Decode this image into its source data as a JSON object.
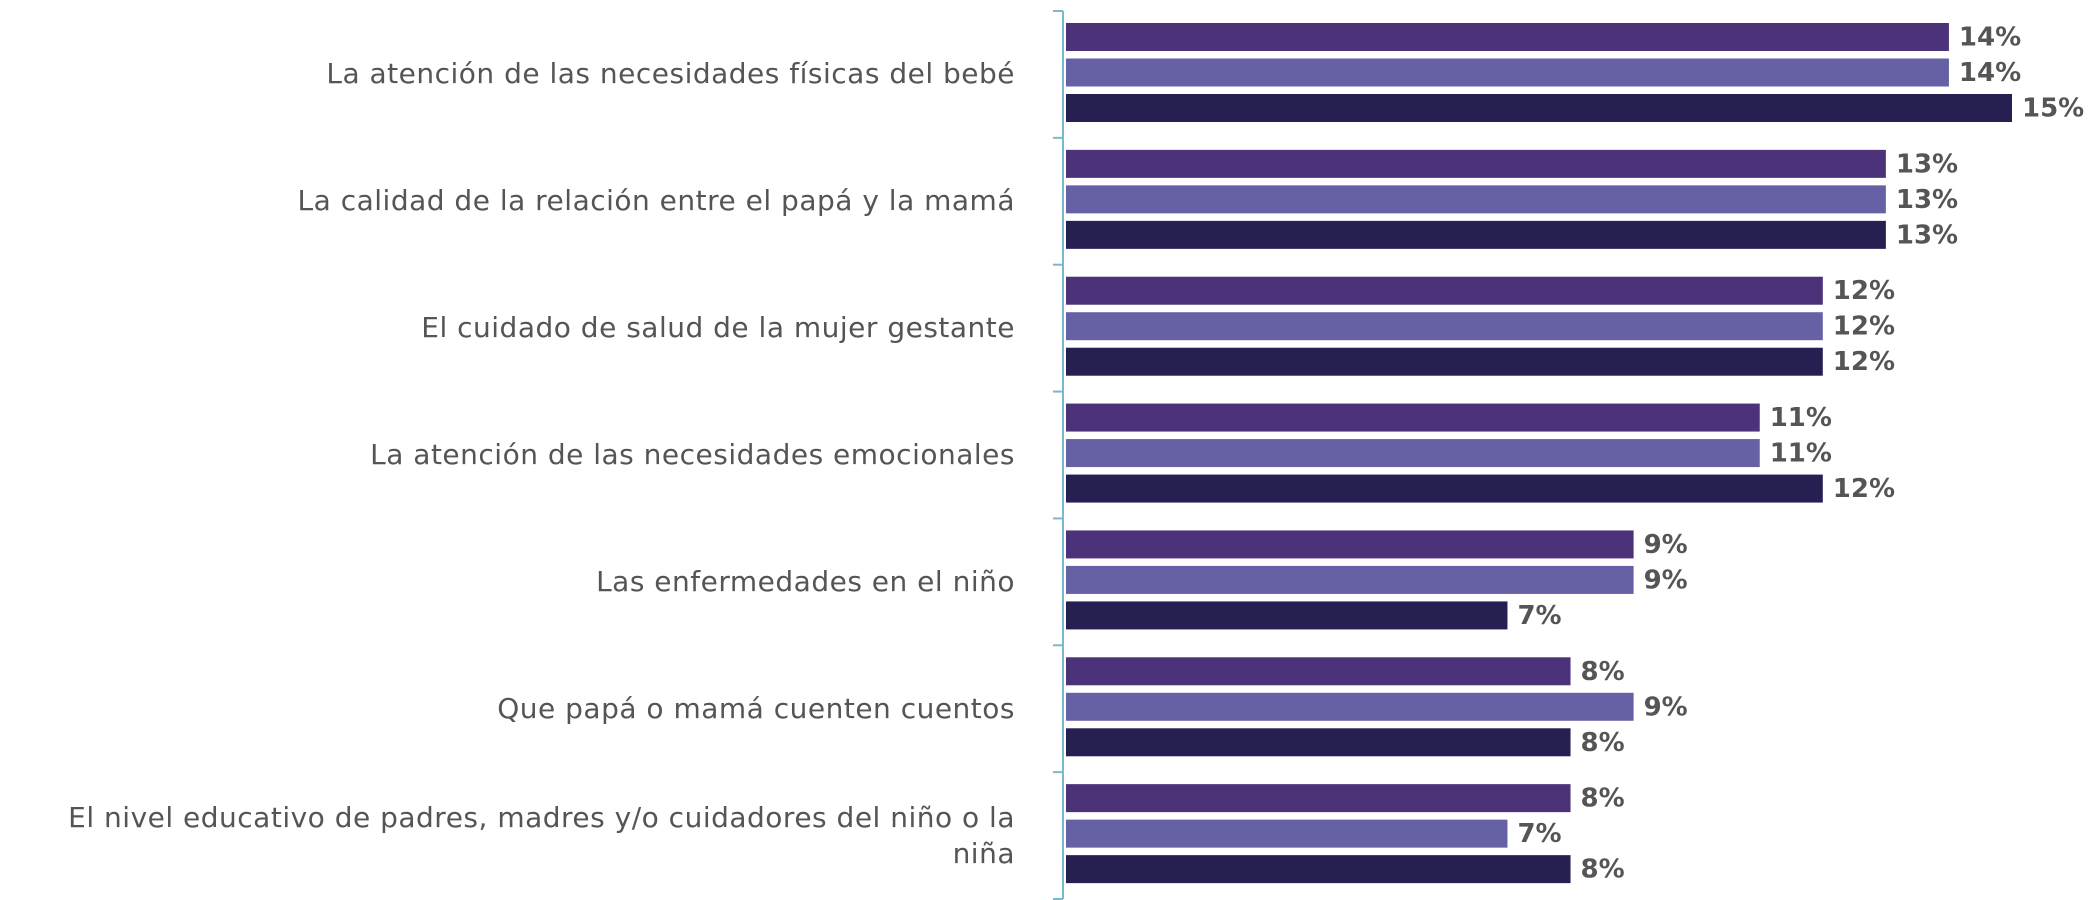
{
  "chart_data": {
    "type": "bar",
    "orientation": "horizontal",
    "categories": [
      "La atención de las necesidades físicas del bebé",
      "La calidad de la relación entre el papá y la mamá",
      "El cuidado de salud de la mujer gestante",
      "La atención de las necesidades emocionales",
      "Las enfermedades en el niño",
      "Que papá o mamá cuenten cuentos",
      "El nivel educativo de padres, madres y/o cuidadores del niño o la niña"
    ],
    "series": [
      {
        "color": "#4b3279",
        "values": [
          14,
          13,
          12,
          11,
          9,
          8,
          8
        ],
        "value_labels": [
          "14%",
          "13%",
          "12%",
          "11%",
          "9%",
          "8%",
          "8%"
        ]
      },
      {
        "color": "#6561a4",
        "values": [
          14,
          13,
          12,
          11,
          9,
          9,
          7
        ],
        "value_labels": [
          "14%",
          "13%",
          "12%",
          "11%",
          "9%",
          "9%",
          "7%"
        ]
      },
      {
        "color": "#261f52",
        "values": [
          15,
          13,
          12,
          12,
          7,
          8,
          8
        ],
        "value_labels": [
          "15%",
          "13%",
          "12%",
          "12%",
          "7%",
          "8%",
          "8%"
        ]
      }
    ],
    "xlim": [
      0,
      15
    ]
  }
}
